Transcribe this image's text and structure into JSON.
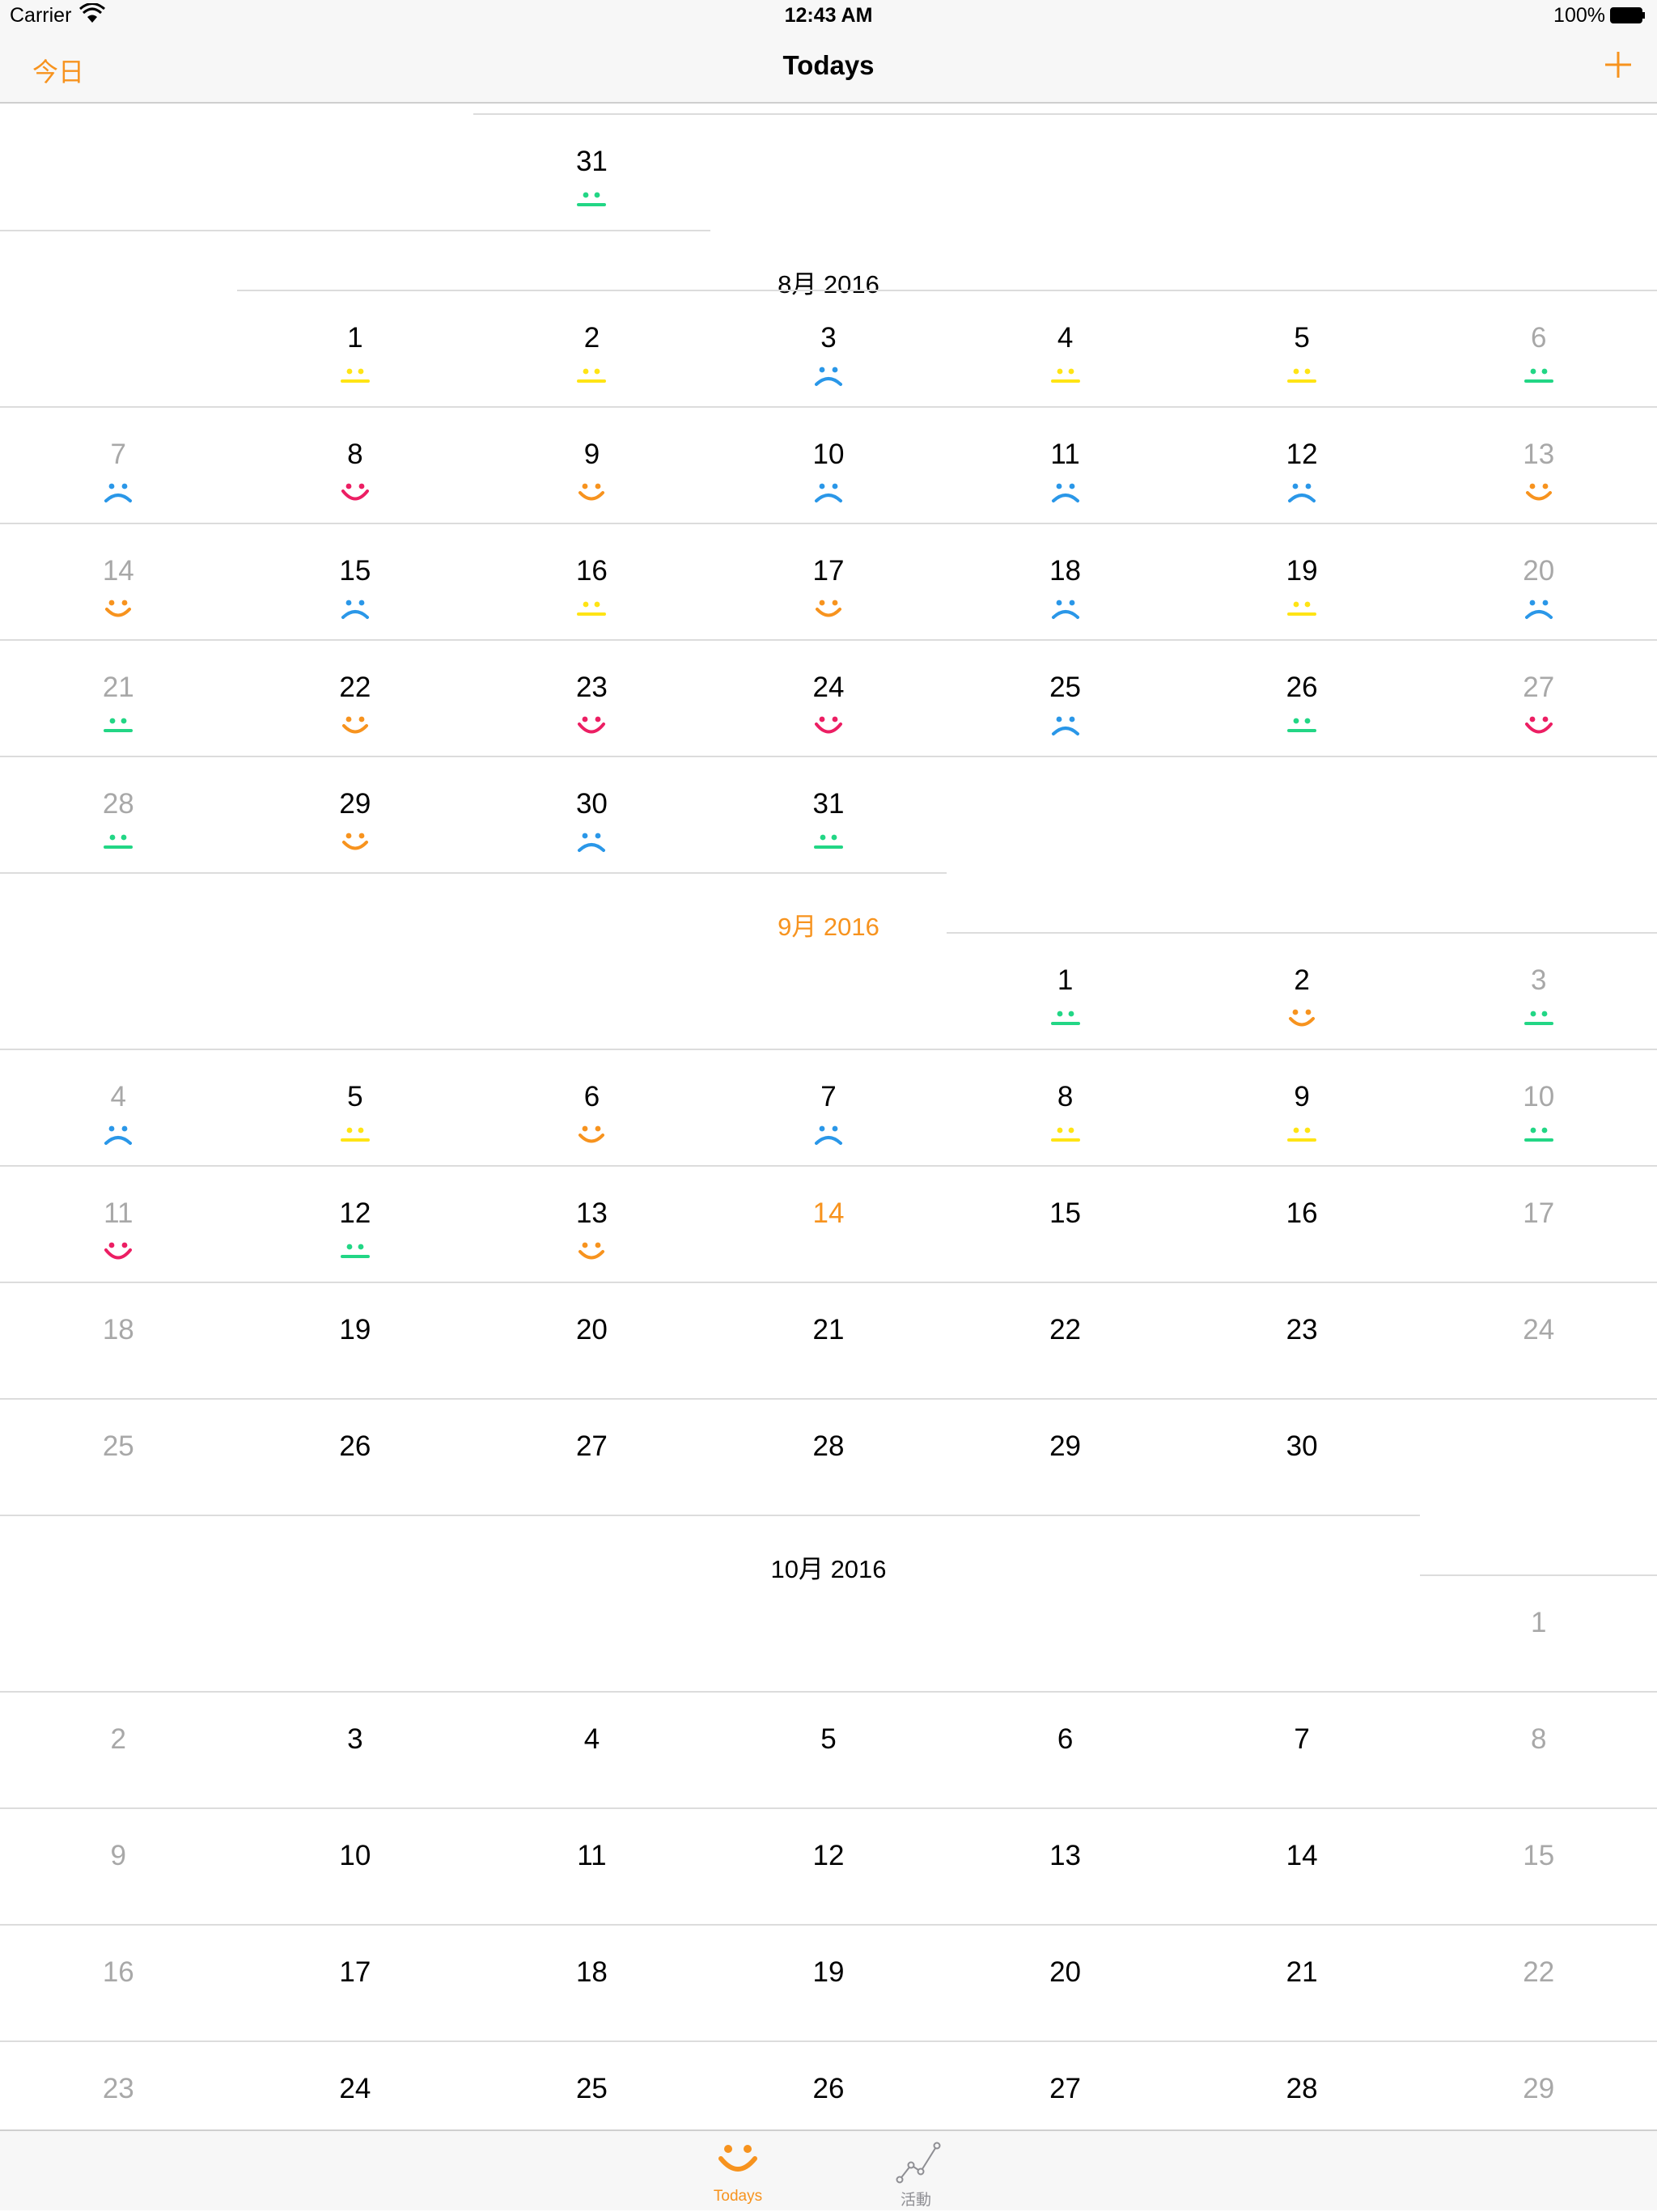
{
  "status_bar": {
    "carrier": "Carrier",
    "time": "12:43 AM",
    "battery": "100%"
  },
  "nav": {
    "left_button": "今日",
    "title": "Todays",
    "add_icon": "plus-icon"
  },
  "colors": {
    "accent": "#f7931e",
    "weekday_text": "#000000",
    "weekend_text": "#a8a8a8",
    "mood_red": "#ec1e63",
    "mood_orange": "#f7931e",
    "mood_yellow": "#ffe414",
    "mood_green": "#22d685",
    "mood_blue": "#2a97e8"
  },
  "moods": {
    "red": {
      "icon": "big-smile-icon"
    },
    "orange": {
      "icon": "smile-icon"
    },
    "yellow": {
      "icon": "neutral-face-icon"
    },
    "green": {
      "icon": "neutral-face-icon"
    },
    "blue": {
      "icon": "sad-face-icon"
    }
  },
  "calendar": {
    "months": [
      {
        "label": "",
        "current": false,
        "first_weekday": 0,
        "days_in_month": 31,
        "show_from": 31,
        "moods": {
          "31": "green"
        }
      },
      {
        "label": "8月 2016",
        "current": false,
        "first_weekday": 1,
        "days_in_month": 31,
        "show_from": 1,
        "moods": {
          "1": "yellow",
          "2": "yellow",
          "3": "blue",
          "4": "yellow",
          "5": "yellow",
          "6": "green",
          "7": "blue",
          "8": "red",
          "9": "orange",
          "10": "blue",
          "11": "blue",
          "12": "blue",
          "13": "orange",
          "14": "orange",
          "15": "blue",
          "16": "yellow",
          "17": "orange",
          "18": "blue",
          "19": "yellow",
          "20": "blue",
          "21": "green",
          "22": "orange",
          "23": "red",
          "24": "red",
          "25": "blue",
          "26": "green",
          "27": "red",
          "28": "green",
          "29": "orange",
          "30": "blue",
          "31": "green"
        }
      },
      {
        "label": "9月 2016",
        "current": true,
        "first_weekday": 4,
        "days_in_month": 30,
        "show_from": 1,
        "today": 14,
        "moods": {
          "1": "green",
          "2": "orange",
          "3": "green",
          "4": "blue",
          "5": "yellow",
          "6": "orange",
          "7": "blue",
          "8": "yellow",
          "9": "yellow",
          "10": "green",
          "11": "red",
          "12": "green",
          "13": "orange"
        }
      },
      {
        "label": "10月 2016",
        "current": false,
        "first_weekday": 6,
        "days_in_month": 29,
        "show_from": 1,
        "moods": {}
      }
    ]
  },
  "tabs": [
    {
      "label": "Todays",
      "icon": "smile-icon",
      "active": true
    },
    {
      "label": "活動",
      "icon": "line-chart-icon",
      "active": false
    }
  ]
}
